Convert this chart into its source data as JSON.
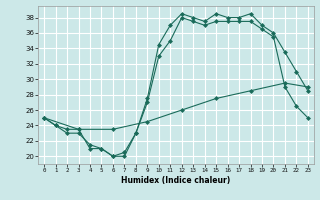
{
  "xlabel": "Humidex (Indice chaleur)",
  "bg_color": "#cce8e8",
  "grid_color": "#ffffff",
  "line_color": "#1a6b5a",
  "xlim": [
    -0.5,
    23.5
  ],
  "ylim": [
    19.0,
    39.5
  ],
  "yticks": [
    20,
    22,
    24,
    26,
    28,
    30,
    32,
    34,
    36,
    38
  ],
  "xticks": [
    0,
    1,
    2,
    3,
    4,
    5,
    6,
    7,
    8,
    9,
    10,
    11,
    12,
    13,
    14,
    15,
    16,
    17,
    18,
    19,
    20,
    21,
    22,
    23
  ],
  "line1_x": [
    0,
    1,
    2,
    3,
    4,
    5,
    6,
    7,
    8,
    9,
    10,
    11,
    12,
    13,
    14,
    15,
    16,
    17,
    18,
    19,
    20,
    21,
    22,
    23
  ],
  "line1_y": [
    25,
    24,
    23,
    23,
    21.5,
    21,
    20,
    20,
    23,
    27.5,
    34.5,
    37,
    38.5,
    38,
    37.5,
    38.5,
    38,
    38,
    38.5,
    37,
    36,
    33.5,
    31,
    28.5
  ],
  "line2_x": [
    0,
    3,
    6,
    9,
    12,
    15,
    18,
    21,
    23
  ],
  "line2_y": [
    25,
    23.5,
    23.5,
    24.5,
    26,
    27.5,
    28.5,
    29.5,
    29
  ],
  "line3_x": [
    0,
    1,
    2,
    3,
    4,
    5,
    6,
    7,
    8,
    9,
    10,
    11,
    12,
    13,
    14,
    15,
    16,
    17,
    18,
    19,
    20,
    21,
    22,
    23
  ],
  "line3_y": [
    25,
    24,
    23.5,
    23.5,
    21,
    21,
    20,
    20.5,
    23,
    27,
    33,
    35,
    38,
    37.5,
    37,
    37.5,
    37.5,
    37.5,
    37.5,
    36.5,
    35.5,
    29,
    26.5,
    25
  ]
}
